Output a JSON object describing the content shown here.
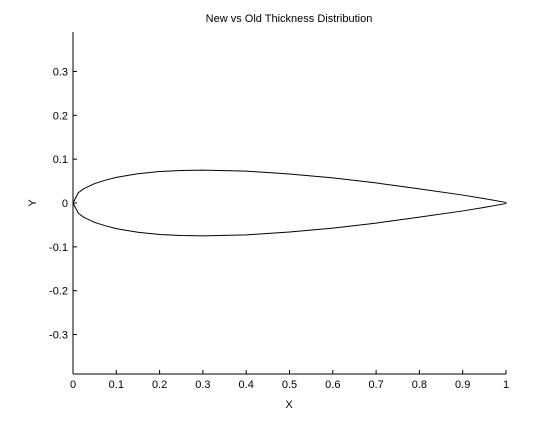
{
  "chart_data": {
    "type": "line",
    "title": "New vs Old Thickness Distribution",
    "xlabel": "X",
    "ylabel": "Y",
    "xlim": [
      0,
      1
    ],
    "ylim": [
      -0.39,
      0.39
    ],
    "x_ticks": [
      0,
      0.1,
      0.2,
      0.3,
      0.4,
      0.5,
      0.6,
      0.7,
      0.8,
      0.9,
      1
    ],
    "x_tick_labels": [
      "0",
      "0.1",
      "0.2",
      "0.3",
      "0.4",
      "0.5",
      "0.6",
      "0.7",
      "0.8",
      "0.9",
      "1"
    ],
    "y_ticks": [
      -0.3,
      -0.2,
      -0.1,
      0,
      0.1,
      0.2,
      0.3
    ],
    "y_tick_labels": [
      "-0.3",
      "-0.2",
      "-0.1",
      "0",
      "0.1",
      "0.2",
      "0.3"
    ],
    "grid": false,
    "line_color": "#000000",
    "series": [
      {
        "x": [
          0,
          0.0125,
          0.025,
          0.05,
          0.075,
          0.1,
          0.15,
          0.2,
          0.25,
          0.3,
          0.4,
          0.5,
          0.6,
          0.7,
          0.8,
          0.9,
          0.95,
          1
        ],
        "values": [
          0,
          0.0237,
          0.0327,
          0.0443,
          0.052,
          0.0585,
          0.0668,
          0.0717,
          0.0741,
          0.075,
          0.0726,
          0.0662,
          0.0573,
          0.0458,
          0.0322,
          0.0181,
          0.0101,
          0.0013
        ]
      },
      {
        "x": [
          0,
          0.0125,
          0.025,
          0.05,
          0.075,
          0.1,
          0.15,
          0.2,
          0.25,
          0.3,
          0.4,
          0.5,
          0.6,
          0.7,
          0.8,
          0.9,
          0.95,
          1
        ],
        "values": [
          0,
          -0.0237,
          -0.0327,
          -0.0443,
          -0.052,
          -0.0585,
          -0.0668,
          -0.0717,
          -0.0741,
          -0.075,
          -0.0726,
          -0.0662,
          -0.0573,
          -0.0458,
          -0.0322,
          -0.0181,
          -0.0101,
          -0.0013
        ]
      }
    ]
  }
}
